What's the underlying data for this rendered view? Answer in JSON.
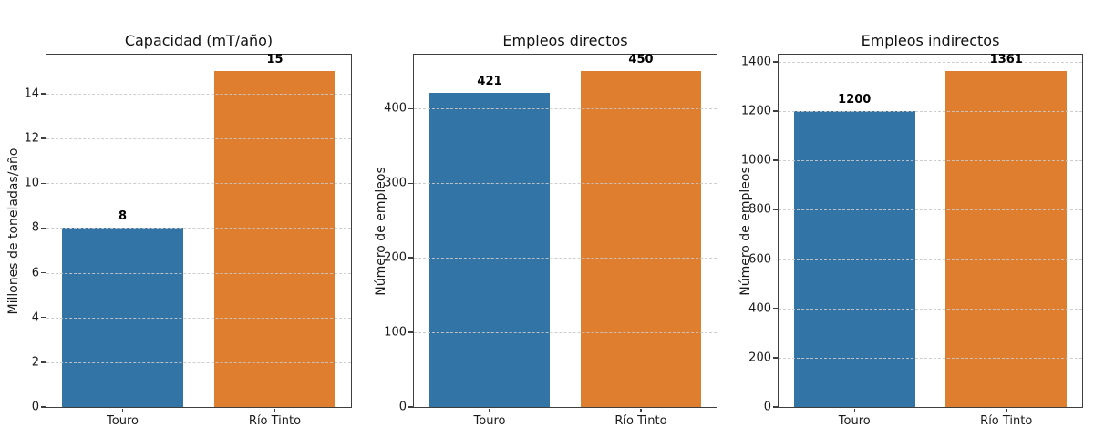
{
  "figure": {
    "background": "#ffffff"
  },
  "colors": {
    "bar_touro": "#3274a5",
    "bar_rio_tinto": "#de7e2e",
    "grid": "#c9c9c9",
    "spine": "#3f3f3f",
    "text": "#1a1a1a"
  },
  "chart_data": [
    {
      "type": "bar",
      "title": "Capacidad (mT/año)",
      "xlabel": "",
      "ylabel": "Millones de toneladas/año",
      "categories": [
        "Touro",
        "Río Tinto"
      ],
      "values": [
        8,
        15
      ],
      "value_labels": [
        "8",
        "15"
      ],
      "bar_colors": [
        "#3274a5",
        "#de7e2e"
      ],
      "ylim": [
        0,
        15.75
      ],
      "yticks": [
        0,
        2,
        4,
        6,
        8,
        10,
        12,
        14
      ],
      "grid": "horizontal-dashed",
      "legend": null
    },
    {
      "type": "bar",
      "title": "Empleos directos",
      "xlabel": "",
      "ylabel": "Número de empleos",
      "categories": [
        "Touro",
        "Río Tinto"
      ],
      "values": [
        421,
        450
      ],
      "value_labels": [
        "421",
        "450"
      ],
      "bar_colors": [
        "#3274a5",
        "#de7e2e"
      ],
      "ylim": [
        0,
        472.5
      ],
      "yticks": [
        0,
        100,
        200,
        300,
        400
      ],
      "grid": "horizontal-dashed",
      "legend": null
    },
    {
      "type": "bar",
      "title": "Empleos indirectos",
      "xlabel": "",
      "ylabel": "Número de empleos",
      "categories": [
        "Touro",
        "Río Tinto"
      ],
      "values": [
        1200,
        1361
      ],
      "value_labels": [
        "1200",
        "1361"
      ],
      "bar_colors": [
        "#3274a5",
        "#de7e2e"
      ],
      "ylim": [
        0,
        1429
      ],
      "yticks": [
        0,
        200,
        400,
        600,
        800,
        1000,
        1200,
        1400
      ],
      "grid": "horizontal-dashed",
      "legend": null
    }
  ]
}
